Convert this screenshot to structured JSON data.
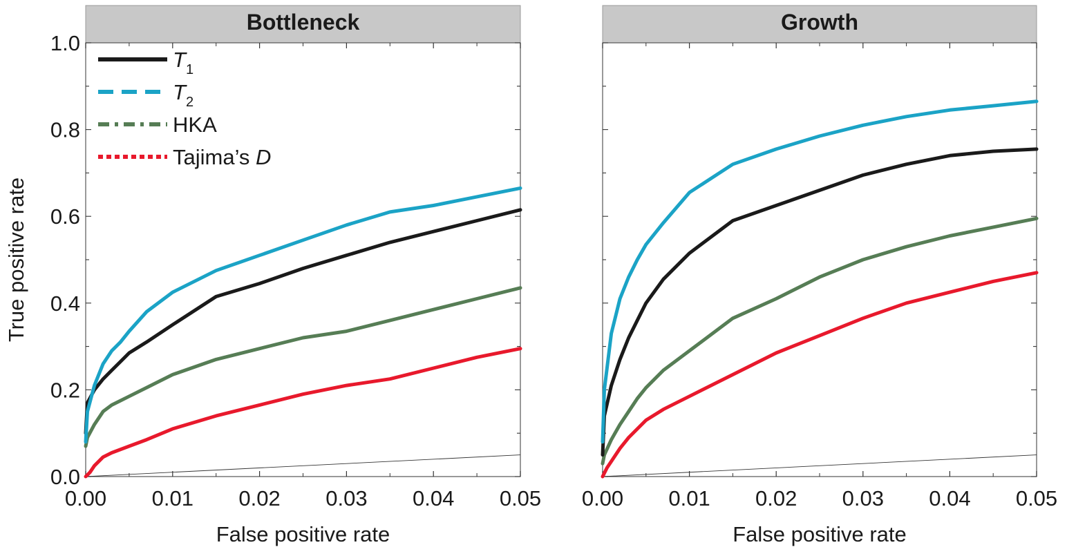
{
  "figure": {
    "ylabel": "True positive rate",
    "xlabel": "False positive rate"
  },
  "legend": [
    {
      "name": "T",
      "subscript": "1",
      "italic": true,
      "color": "#1a1a1a",
      "dash": "solid"
    },
    {
      "name": "T",
      "subscript": "2",
      "italic": true,
      "color": "#1ba3c6",
      "dash": "dashed"
    },
    {
      "name": "HKA",
      "italic": false,
      "color": "#567d55",
      "dash": "dashdot"
    },
    {
      "name": "Tajima’s ",
      "suffix": "D",
      "italic": false,
      "color": "#e8192c",
      "dash": "dotted"
    }
  ],
  "chart_data": [
    {
      "type": "line",
      "title": "Bottleneck",
      "xlabel": "False positive rate",
      "ylabel": "True positive rate",
      "xlim": [
        0,
        0.05
      ],
      "ylim": [
        0,
        1.0
      ],
      "xticks": [
        "0.00",
        "0.01",
        "0.02",
        "0.03",
        "0.04",
        "0.05"
      ],
      "yticks": [
        "0.0",
        "0.2",
        "0.4",
        "0.6",
        "0.8",
        "1.0"
      ],
      "legend_position": "top-left",
      "reference_line": {
        "x": [
          0,
          0.05
        ],
        "y": [
          0,
          0.05
        ]
      },
      "series": [
        {
          "name": "T1",
          "color": "#1a1a1a",
          "x": [
            0,
            0.0002,
            0.001,
            0.002,
            0.003,
            0.004,
            0.005,
            0.007,
            0.01,
            0.015,
            0.02,
            0.025,
            0.03,
            0.035,
            0.04,
            0.045,
            0.05
          ],
          "y": [
            0.1,
            0.17,
            0.2,
            0.225,
            0.245,
            0.265,
            0.285,
            0.31,
            0.35,
            0.415,
            0.445,
            0.48,
            0.51,
            0.54,
            0.565,
            0.59,
            0.615
          ]
        },
        {
          "name": "T2",
          "color": "#1ba3c6",
          "x": [
            0,
            0.0002,
            0.001,
            0.002,
            0.003,
            0.004,
            0.005,
            0.007,
            0.01,
            0.015,
            0.02,
            0.025,
            0.03,
            0.035,
            0.04,
            0.045,
            0.05
          ],
          "y": [
            0.08,
            0.15,
            0.21,
            0.26,
            0.29,
            0.31,
            0.335,
            0.38,
            0.425,
            0.475,
            0.51,
            0.545,
            0.58,
            0.61,
            0.625,
            0.645,
            0.665
          ]
        },
        {
          "name": "HKA",
          "color": "#567d55",
          "x": [
            0,
            0.0002,
            0.001,
            0.002,
            0.003,
            0.004,
            0.005,
            0.007,
            0.01,
            0.015,
            0.02,
            0.025,
            0.03,
            0.035,
            0.04,
            0.045,
            0.05
          ],
          "y": [
            0.07,
            0.09,
            0.12,
            0.15,
            0.165,
            0.175,
            0.185,
            0.205,
            0.235,
            0.27,
            0.295,
            0.32,
            0.335,
            0.36,
            0.385,
            0.41,
            0.435
          ]
        },
        {
          "name": "Tajima's D",
          "color": "#e8192c",
          "x": [
            0,
            0.0005,
            0.001,
            0.002,
            0.003,
            0.005,
            0.007,
            0.01,
            0.015,
            0.02,
            0.025,
            0.03,
            0.035,
            0.04,
            0.045,
            0.05
          ],
          "y": [
            0.0,
            0.01,
            0.025,
            0.045,
            0.055,
            0.07,
            0.085,
            0.11,
            0.14,
            0.165,
            0.19,
            0.21,
            0.225,
            0.25,
            0.275,
            0.295
          ]
        }
      ]
    },
    {
      "type": "line",
      "title": "Growth",
      "xlabel": "False positive rate",
      "ylabel": "",
      "xlim": [
        0,
        0.05
      ],
      "ylim": [
        0,
        1.0
      ],
      "xticks": [
        "0.00",
        "0.01",
        "0.02",
        "0.03",
        "0.04",
        "0.05"
      ],
      "yticks": [],
      "reference_line": {
        "x": [
          0,
          0.05
        ],
        "y": [
          0,
          0.05
        ]
      },
      "series": [
        {
          "name": "T1",
          "color": "#1a1a1a",
          "x": [
            0,
            0.0002,
            0.001,
            0.002,
            0.003,
            0.004,
            0.005,
            0.007,
            0.01,
            0.015,
            0.02,
            0.025,
            0.03,
            0.035,
            0.04,
            0.045,
            0.05
          ],
          "y": [
            0.05,
            0.14,
            0.21,
            0.27,
            0.32,
            0.36,
            0.4,
            0.455,
            0.515,
            0.59,
            0.625,
            0.66,
            0.695,
            0.72,
            0.74,
            0.75,
            0.755
          ]
        },
        {
          "name": "T2",
          "color": "#1ba3c6",
          "x": [
            0,
            0.0002,
            0.001,
            0.002,
            0.003,
            0.004,
            0.005,
            0.007,
            0.01,
            0.015,
            0.02,
            0.025,
            0.03,
            0.035,
            0.04,
            0.045,
            0.05
          ],
          "y": [
            0.08,
            0.2,
            0.33,
            0.41,
            0.46,
            0.5,
            0.535,
            0.585,
            0.655,
            0.72,
            0.755,
            0.785,
            0.81,
            0.83,
            0.845,
            0.855,
            0.865
          ]
        },
        {
          "name": "HKA",
          "color": "#567d55",
          "x": [
            0,
            0.0002,
            0.001,
            0.002,
            0.003,
            0.004,
            0.005,
            0.007,
            0.01,
            0.015,
            0.02,
            0.025,
            0.03,
            0.035,
            0.04,
            0.045,
            0.05
          ],
          "y": [
            0.03,
            0.05,
            0.085,
            0.12,
            0.15,
            0.18,
            0.205,
            0.245,
            0.29,
            0.365,
            0.41,
            0.46,
            0.5,
            0.53,
            0.555,
            0.575,
            0.595
          ]
        },
        {
          "name": "Tajima's D",
          "color": "#e8192c",
          "x": [
            0,
            0.0005,
            0.001,
            0.002,
            0.003,
            0.005,
            0.007,
            0.01,
            0.015,
            0.02,
            0.025,
            0.03,
            0.035,
            0.04,
            0.045,
            0.05
          ],
          "y": [
            0.0,
            0.02,
            0.035,
            0.065,
            0.09,
            0.13,
            0.155,
            0.185,
            0.235,
            0.285,
            0.325,
            0.365,
            0.4,
            0.425,
            0.45,
            0.47
          ]
        }
      ]
    }
  ]
}
